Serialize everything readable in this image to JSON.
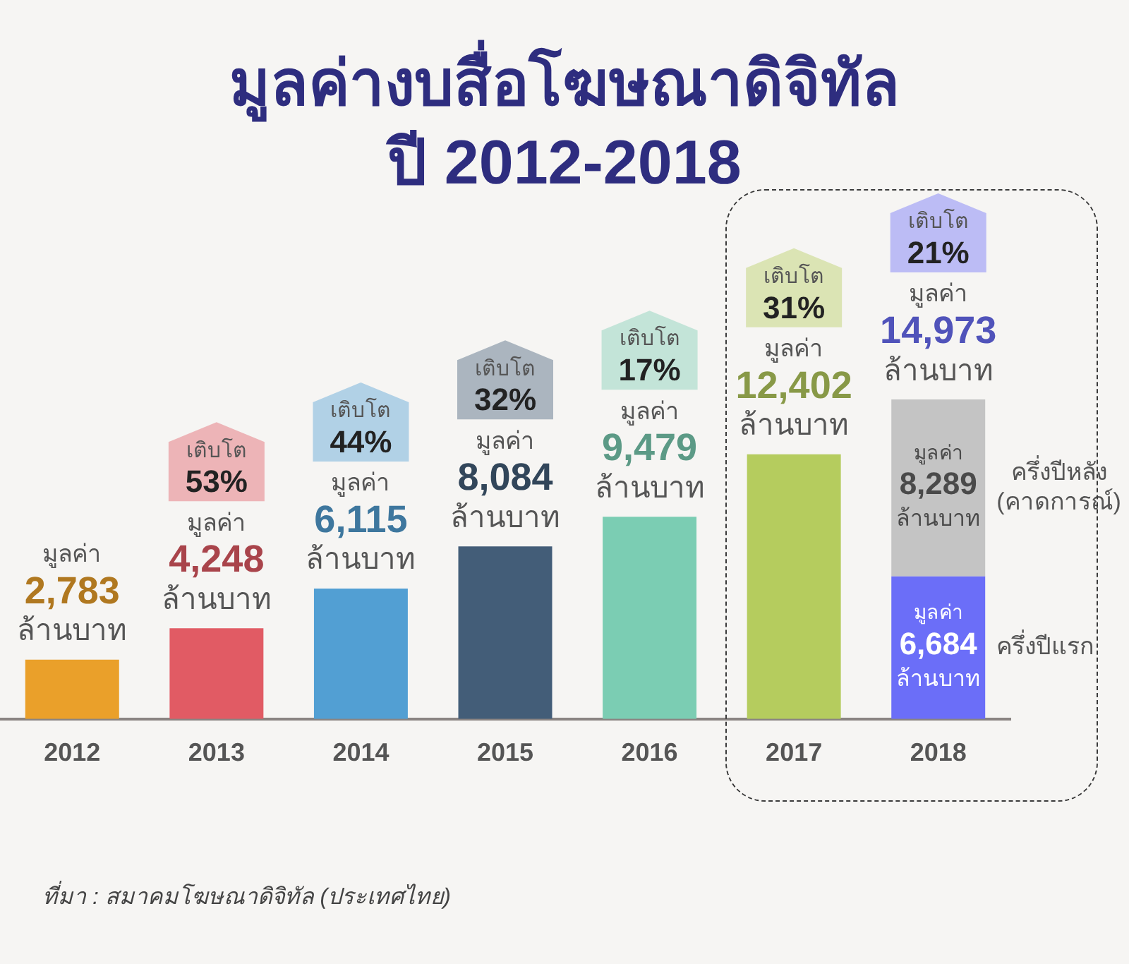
{
  "chart_data": {
    "type": "bar",
    "title": "มูลค่างบสื่อโฆษณาดิจิทัล\nปี 2012-2018",
    "categories": [
      "2012",
      "2013",
      "2014",
      "2015",
      "2016",
      "2017",
      "2018"
    ],
    "stacked": true,
    "tick_labels": "x",
    "legend": false,
    "series": [
      {
        "colors": [
          "#eaa02a",
          "#e15b64",
          "#529fd3",
          "#435d78",
          "#7bcdb3",
          "#b5cc5e",
          null
        ],
        "values": [
          2783,
          4248,
          6115,
          8084,
          9479,
          12402,
          null
        ],
        "value_labels": [
          "มูลค่า\n2,783\nล้านบาท",
          "มูลค่า\n4,248\nล้านบาท",
          "มูลค่า\n6,115\nล้านบาท",
          "มูลค่า\n8,084\nล้านบาท",
          "มูลค่า\n9,479\nล้านบาท",
          "มูลค่า\n12,402\nล้านบาท",
          null
        ]
      },
      {
        "name": "ครึ่งปีแรก",
        "color": "#6b6ef8",
        "values": [
          null,
          null,
          null,
          null,
          null,
          null,
          6684
        ],
        "value_labels": [
          null,
          null,
          null,
          null,
          null,
          null,
          "มูลค่า\n6,684\nล้านบาท"
        ]
      },
      {
        "name": "ครึ่งปีหลัง (คาดการณ์)",
        "color": "#c4c4c4",
        "values": [
          null,
          null,
          null,
          null,
          null,
          null,
          8289
        ],
        "value_labels": [
          null,
          null,
          null,
          null,
          null,
          null,
          "มูลค่า\n8,289\nล้านบาท"
        ]
      }
    ],
    "totals": [
      null,
      null,
      null,
      null,
      null,
      null,
      "มูลค่า\n14,973\nล้านบาท"
    ],
    "annotations": [
      "เติบโต\n53%",
      "เติบโต\n44%",
      "เติบโต\n32%",
      "เติบโต\n17%",
      "เติบโต\n31%",
      "เติบโต\n21%",
      "ที่มา : สมาคมโฆษณาดิจิทัล (ประเทศไทย)"
    ]
  }
}
